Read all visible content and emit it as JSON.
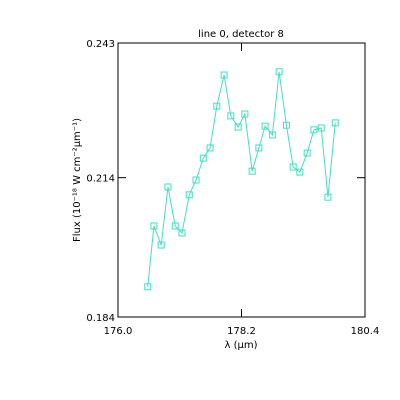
{
  "chart_data": {
    "type": "line",
    "title": "line 0, detector 8",
    "xlabel": "λ (μm)",
    "ylabel": "Flux (10⁻¹⁸ W cm⁻²μm⁻¹)",
    "x": [
      176.53,
      176.64,
      176.77,
      176.89,
      177.02,
      177.14,
      177.27,
      177.39,
      177.52,
      177.64,
      177.76,
      177.89,
      178.01,
      178.14,
      178.26,
      178.39,
      178.51,
      178.62,
      178.75,
      178.87,
      179.0,
      179.12,
      179.24,
      179.37,
      179.49,
      179.62,
      179.74,
      179.87
    ],
    "series": [
      {
        "color": "#40e0c0",
        "values": [
          0.1905,
          0.2036,
          0.1995,
          0.212,
          0.2036,
          0.2021,
          0.2103,
          0.2135,
          0.2182,
          0.2204,
          0.2294,
          0.2361,
          0.2273,
          0.2249,
          0.2277,
          0.2154,
          0.2204,
          0.2251,
          0.2232,
          0.2368,
          0.2253,
          0.2163,
          0.2152,
          0.2193,
          0.2243,
          0.2247,
          0.2098,
          0.2258
        ]
      }
    ],
    "xlim": [
      176.0,
      180.4
    ],
    "xticks": [
      {
        "value": 176.0,
        "label": "176.0"
      },
      178.2,
      180.4
    ],
    "ylim": [
      0.184,
      0.243
    ],
    "yticks": [
      0.184,
      0.214,
      0.243
    ]
  }
}
